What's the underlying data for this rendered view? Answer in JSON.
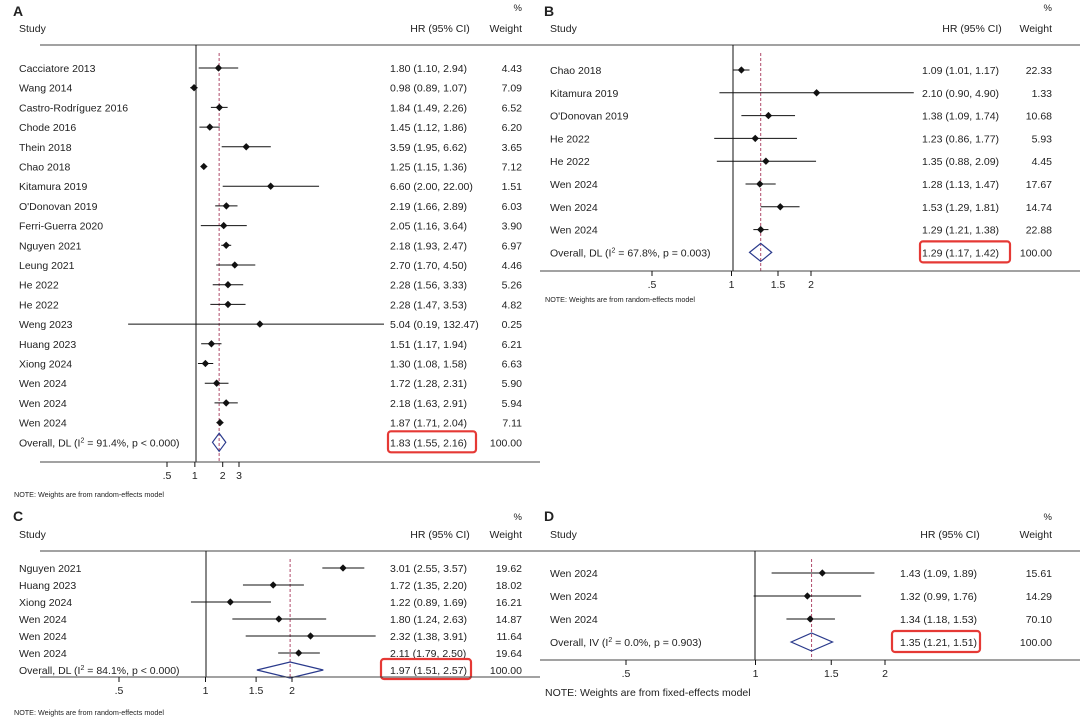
{
  "chart_data": [
    {
      "type": "forest",
      "panel_label": "A",
      "headers": {
        "study": "Study",
        "ci": "HR (95% CI)",
        "weight_pct": "%",
        "weight": "Weight"
      },
      "x_scale": "log",
      "null_line": 1,
      "xticks": [
        ".5",
        "1",
        "2",
        "3"
      ],
      "xtick_values": [
        0.5,
        1,
        2,
        3
      ],
      "xlim": [
        0.25,
        130
      ],
      "rows": [
        {
          "study": "Cacciatore 2013",
          "hr": 1.8,
          "lo": 1.1,
          "hi": 2.94,
          "ci_text": "1.80 (1.10, 2.94)",
          "weight": "4.43"
        },
        {
          "study": "Wang 2014",
          "hr": 0.98,
          "lo": 0.89,
          "hi": 1.07,
          "ci_text": "0.98 (0.89, 1.07)",
          "weight": "7.09"
        },
        {
          "study": "Castro-Rodríguez 2016",
          "hr": 1.84,
          "lo": 1.49,
          "hi": 2.26,
          "ci_text": "1.84 (1.49, 2.26)",
          "weight": "6.52"
        },
        {
          "study": "Chode 2016",
          "hr": 1.45,
          "lo": 1.12,
          "hi": 1.86,
          "ci_text": "1.45 (1.12, 1.86)",
          "weight": "6.20"
        },
        {
          "study": "Thein 2018",
          "hr": 3.59,
          "lo": 1.95,
          "hi": 6.62,
          "ci_text": "3.59 (1.95, 6.62)",
          "weight": "3.65"
        },
        {
          "study": "Chao 2018",
          "hr": 1.25,
          "lo": 1.15,
          "hi": 1.36,
          "ci_text": "1.25 (1.15, 1.36)",
          "weight": "7.12"
        },
        {
          "study": "Kitamura 2019",
          "hr": 6.6,
          "lo": 2.0,
          "hi": 22.0,
          "ci_text": "6.60 (2.00, 22.00)",
          "weight": "1.51"
        },
        {
          "study": "O'Donovan 2019",
          "hr": 2.19,
          "lo": 1.66,
          "hi": 2.89,
          "ci_text": "2.19 (1.66, 2.89)",
          "weight": "6.03"
        },
        {
          "study": "Ferri-Guerra 2020",
          "hr": 2.05,
          "lo": 1.16,
          "hi": 3.64,
          "ci_text": "2.05 (1.16, 3.64)",
          "weight": "3.90"
        },
        {
          "study": "Nguyen 2021",
          "hr": 2.18,
          "lo": 1.93,
          "hi": 2.47,
          "ci_text": "2.18 (1.93, 2.47)",
          "weight": "6.97"
        },
        {
          "study": "Leung 2021",
          "hr": 2.7,
          "lo": 1.7,
          "hi": 4.5,
          "ci_text": "2.70 (1.70, 4.50)",
          "weight": "4.46"
        },
        {
          "study": "He 2022",
          "hr": 2.28,
          "lo": 1.56,
          "hi": 3.33,
          "ci_text": "2.28 (1.56, 3.33)",
          "weight": "5.26"
        },
        {
          "study": "He 2022",
          "hr": 2.28,
          "lo": 1.47,
          "hi": 3.53,
          "ci_text": "2.28 (1.47, 3.53)",
          "weight": "4.82"
        },
        {
          "study": "Weng 2023",
          "hr": 5.04,
          "lo": 0.19,
          "hi": 132.47,
          "ci_text": "5.04 (0.19, 132.47)",
          "weight": "0.25"
        },
        {
          "study": "Huang 2023",
          "hr": 1.51,
          "lo": 1.17,
          "hi": 1.94,
          "ci_text": "1.51 (1.17, 1.94)",
          "weight": "6.21"
        },
        {
          "study": "Xiong 2024",
          "hr": 1.3,
          "lo": 1.08,
          "hi": 1.58,
          "ci_text": "1.30 (1.08, 1.58)",
          "weight": "6.63"
        },
        {
          "study": "Wen 2024",
          "hr": 1.72,
          "lo": 1.28,
          "hi": 2.31,
          "ci_text": "1.72 (1.28, 2.31)",
          "weight": "5.90"
        },
        {
          "study": "Wen 2024",
          "hr": 2.18,
          "lo": 1.63,
          "hi": 2.91,
          "ci_text": "2.18 (1.63, 2.91)",
          "weight": "5.94"
        },
        {
          "study": "Wen 2024",
          "hr": 1.87,
          "lo": 1.71,
          "hi": 2.04,
          "ci_text": "1.87 (1.71, 2.04)",
          "weight": "7.11"
        }
      ],
      "overall": {
        "label": "Overall, DL (I",
        "sup": "2",
        "label_rest": " = 91.4%, p < 0.000)",
        "hr": 1.83,
        "lo": 1.55,
        "hi": 2.16,
        "ci_text": "1.83 (1.55, 2.16)",
        "weight": "100.00"
      },
      "note": "NOTE: Weights are from random-effects model",
      "highlight_color": "#e53935",
      "diamond_color": "#2a3a8c",
      "ref_line_color": "#b04a6a"
    },
    {
      "type": "forest",
      "panel_label": "B",
      "headers": {
        "study": "Study",
        "ci": "HR (95% CI)",
        "weight_pct": "%",
        "weight": "Weight"
      },
      "x_scale": "log",
      "null_line": 1,
      "xticks": [
        ".5",
        "1",
        "1.5",
        "2"
      ],
      "xtick_values": [
        0.5,
        1,
        1.5,
        2
      ],
      "xlim": [
        0.4,
        6
      ],
      "rows": [
        {
          "study": "Chao 2018",
          "hr": 1.09,
          "lo": 1.01,
          "hi": 1.17,
          "ci_text": "1.09 (1.01, 1.17)",
          "weight": "22.33"
        },
        {
          "study": "Kitamura 2019",
          "hr": 2.1,
          "lo": 0.9,
          "hi": 4.9,
          "ci_text": "2.10 (0.90, 4.90)",
          "weight": "1.33"
        },
        {
          "study": "O'Donovan 2019",
          "hr": 1.38,
          "lo": 1.09,
          "hi": 1.74,
          "ci_text": "1.38 (1.09, 1.74)",
          "weight": "10.68"
        },
        {
          "study": "He 2022",
          "hr": 1.23,
          "lo": 0.86,
          "hi": 1.77,
          "ci_text": "1.23 (0.86, 1.77)",
          "weight": "5.93"
        },
        {
          "study": "He 2022",
          "hr": 1.35,
          "lo": 0.88,
          "hi": 2.09,
          "ci_text": "1.35 (0.88, 2.09)",
          "weight": "4.45"
        },
        {
          "study": "Wen 2024",
          "hr": 1.28,
          "lo": 1.13,
          "hi": 1.47,
          "ci_text": "1.28 (1.13, 1.47)",
          "weight": "17.67"
        },
        {
          "study": "Wen 2024",
          "hr": 1.53,
          "lo": 1.29,
          "hi": 1.81,
          "ci_text": "1.53 (1.29, 1.81)",
          "weight": "14.74"
        },
        {
          "study": "Wen 2024",
          "hr": 1.29,
          "lo": 1.21,
          "hi": 1.38,
          "ci_text": "1.29 (1.21, 1.38)",
          "weight": "22.88"
        }
      ],
      "overall": {
        "label": "Overall, DL (I",
        "sup": "2",
        "label_rest": " = 67.8%, p = 0.003)",
        "hr": 1.29,
        "lo": 1.17,
        "hi": 1.42,
        "ci_text": "1.29 (1.17, 1.42)",
        "weight": "100.00"
      },
      "note": "NOTE: Weights are from random-effects model",
      "highlight_color": "#e53935",
      "diamond_color": "#2a3a8c",
      "ref_line_color": "#b04a6a"
    },
    {
      "type": "forest",
      "panel_label": "C",
      "headers": {
        "study": "Study",
        "ci": "HR (95% CI)",
        "weight_pct": "%",
        "weight": "Weight"
      },
      "x_scale": "log",
      "null_line": 1,
      "xticks": [
        ".5",
        "1",
        "1.5",
        "2"
      ],
      "xtick_values": [
        0.5,
        1,
        1.5,
        2
      ],
      "xlim": [
        0.4,
        4.2
      ],
      "rows": [
        {
          "study": "Nguyen 2021",
          "hr": 3.01,
          "lo": 2.55,
          "hi": 3.57,
          "ci_text": "3.01 (2.55, 3.57)",
          "weight": "19.62"
        },
        {
          "study": "Huang 2023",
          "hr": 1.72,
          "lo": 1.35,
          "hi": 2.2,
          "ci_text": "1.72 (1.35, 2.20)",
          "weight": "18.02"
        },
        {
          "study": "Xiong 2024",
          "hr": 1.22,
          "lo": 0.89,
          "hi": 1.69,
          "ci_text": "1.22 (0.89, 1.69)",
          "weight": "16.21"
        },
        {
          "study": "Wen 2024",
          "hr": 1.8,
          "lo": 1.24,
          "hi": 2.63,
          "ci_text": "1.80 (1.24, 2.63)",
          "weight": "14.87"
        },
        {
          "study": "Wen 2024",
          "hr": 2.32,
          "lo": 1.38,
          "hi": 3.91,
          "ci_text": "2.32 (1.38, 3.91)",
          "weight": "11.64"
        },
        {
          "study": "Wen 2024",
          "hr": 2.11,
          "lo": 1.79,
          "hi": 2.5,
          "ci_text": "2.11 (1.79, 2.50)",
          "weight": "19.64"
        }
      ],
      "overall": {
        "label": "Overall, DL (I",
        "sup": "2",
        "label_rest": " = 84.1%, p < 0.000)",
        "hr": 1.97,
        "lo": 1.51,
        "hi": 2.57,
        "ci_text": "1.97 (1.51, 2.57)",
        "weight": "100.00"
      },
      "note": "NOTE: Weights are from random-effects model",
      "highlight_color": "#e53935",
      "diamond_color": "#2a3a8c",
      "ref_line_color": "#b04a6a"
    },
    {
      "type": "forest",
      "panel_label": "D",
      "headers": {
        "study": "Study",
        "ci": "HR (95% CI)",
        "weight_pct": "%",
        "weight": "Weight"
      },
      "x_scale": "log",
      "null_line": 1,
      "xticks": [
        ".5",
        "1",
        "1.5",
        "2"
      ],
      "xtick_values": [
        0.5,
        1,
        1.5,
        2
      ],
      "xlim": [
        0.4,
        2.6
      ],
      "rows": [
        {
          "study": "Wen 2024",
          "hr": 1.43,
          "lo": 1.09,
          "hi": 1.89,
          "ci_text": "1.43 (1.09, 1.89)",
          "weight": "15.61"
        },
        {
          "study": "Wen 2024",
          "hr": 1.32,
          "lo": 0.99,
          "hi": 1.76,
          "ci_text": "1.32 (0.99, 1.76)",
          "weight": "14.29"
        },
        {
          "study": "Wen 2024",
          "hr": 1.34,
          "lo": 1.18,
          "hi": 1.53,
          "ci_text": "1.34 (1.18, 1.53)",
          "weight": "70.10"
        }
      ],
      "overall": {
        "label": "Overall, IV (I",
        "sup": "2",
        "label_rest": " = 0.0%, p = 0.903)",
        "hr": 1.35,
        "lo": 1.21,
        "hi": 1.51,
        "ci_text": "1.35 (1.21, 1.51)",
        "weight": "100.00"
      },
      "note": "NOTE: Weights are from fixed-effects model",
      "highlight_color": "#e53935",
      "diamond_color": "#2a3a8c",
      "ref_line_color": "#b04a6a"
    }
  ]
}
